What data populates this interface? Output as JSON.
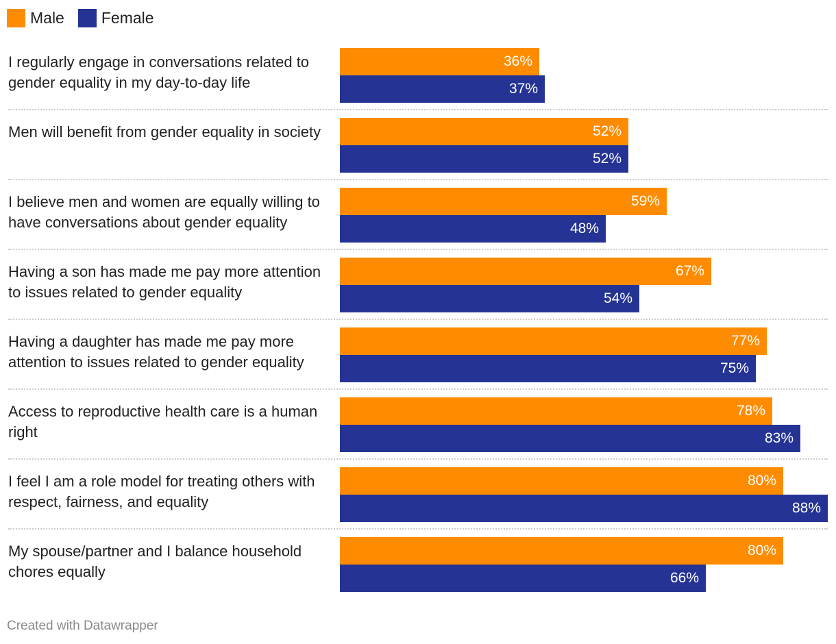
{
  "legend": {
    "male_label": "Male",
    "female_label": "Female"
  },
  "colors": {
    "male": "#FF8C00",
    "female": "#253494",
    "divider": "#cccccc"
  },
  "chart_data": {
    "type": "bar",
    "orientation": "horizontal",
    "title": "",
    "xlabel": "",
    "ylabel": "",
    "xlim": [
      0,
      88
    ],
    "value_suffix": "%",
    "categories": [
      "I regularly engage in conversations related to gender equality in my day-to-day life",
      "Men will benefit from gender equality in society",
      "I believe men and women are equally willing to have conversations about gender equality",
      "Having a son has made me pay more attention to issues related to gender equality",
      "Having a daughter has made me pay more attention to issues related to gender equality",
      "Access to reproductive health care is a human right",
      "I feel I am a role model for treating others with respect, fairness, and equality",
      "My spouse/partner and I balance household chores equally"
    ],
    "series": [
      {
        "name": "Male",
        "values": [
          36,
          52,
          59,
          67,
          77,
          78,
          80,
          80
        ]
      },
      {
        "name": "Female",
        "values": [
          37,
          52,
          48,
          54,
          75,
          83,
          88,
          66
        ]
      }
    ],
    "legend_position": "top-left"
  },
  "footer": {
    "credit": "Created with Datawrapper"
  }
}
